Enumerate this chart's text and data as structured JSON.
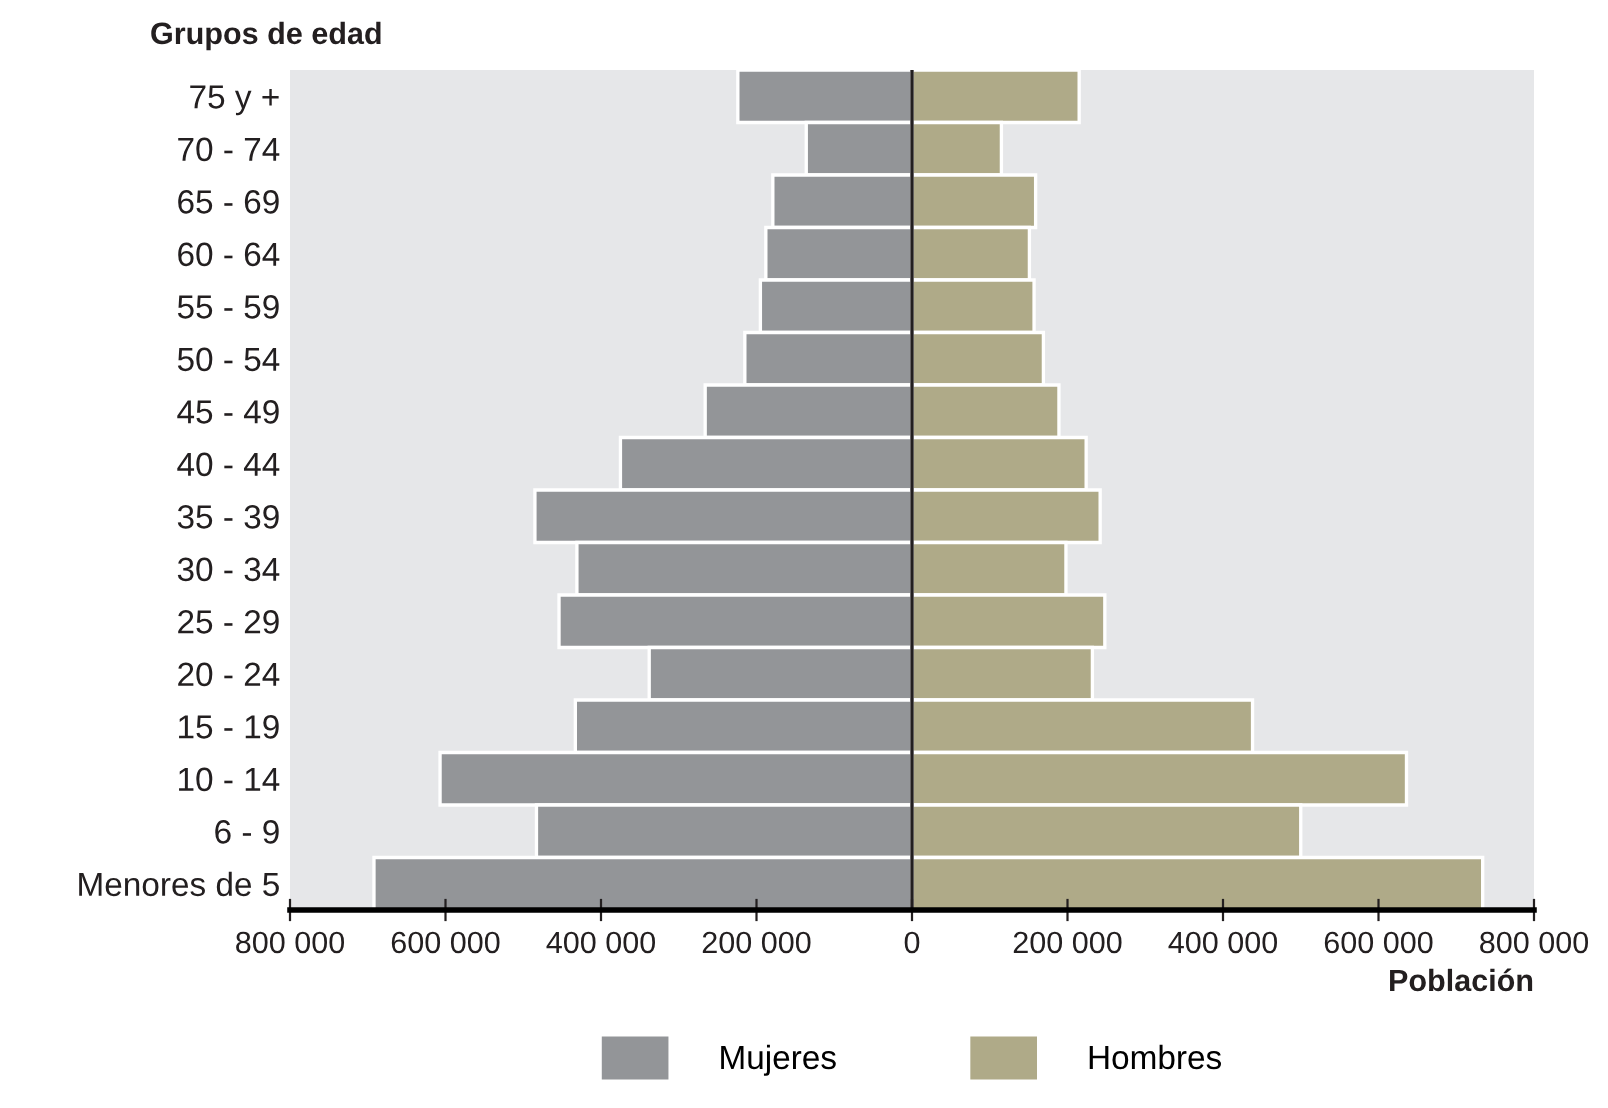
{
  "chart_data": {
    "type": "bar",
    "orientation": "horizontal",
    "ylabel": "Grupos de edad",
    "xlabel": "Población",
    "categories": [
      "75 y +",
      "70 - 74",
      "65 - 69",
      "60 - 64",
      "55 - 59",
      "50 - 54",
      "45 - 49",
      "40 - 44",
      "35 - 39",
      "30 - 34",
      "25 - 29",
      "20 - 24",
      "15 - 19",
      "10 - 14",
      "6 - 9",
      "Menores de 5"
    ],
    "series": [
      {
        "name": "Mujeres",
        "color": "#939598",
        "values": [
          -224000,
          -136000,
          -179000,
          -188000,
          -195000,
          -215000,
          -266000,
          -375000,
          -485000,
          -431000,
          -454000,
          -338000,
          -433000,
          -607000,
          -483000,
          -692000
        ]
      },
      {
        "name": "Hombres",
        "color": "#afaa88",
        "values": [
          215000,
          115000,
          159000,
          151000,
          157000,
          169000,
          189000,
          224000,
          242000,
          198000,
          248000,
          232000,
          438000,
          636000,
          500000,
          734000
        ]
      }
    ],
    "xlim": [
      -800000,
      800000
    ],
    "xticks": [
      {
        "value": -800000,
        "label": "800 000"
      },
      {
        "value": -600000,
        "label": "600 000"
      },
      {
        "value": -400000,
        "label": "400 000"
      },
      {
        "value": -200000,
        "label": "200 000"
      },
      0,
      {
        "value": 200000,
        "label": "200 000"
      },
      {
        "value": 400000,
        "label": "400 000"
      },
      {
        "value": 600000,
        "label": "600 000"
      },
      {
        "value": 800000,
        "label": "800 000"
      }
    ],
    "ref_lines": [
      {
        "axis": "x",
        "value": 0,
        "color": "#231f20"
      }
    ],
    "stacked": true,
    "grid": false,
    "legend": "bottom"
  }
}
